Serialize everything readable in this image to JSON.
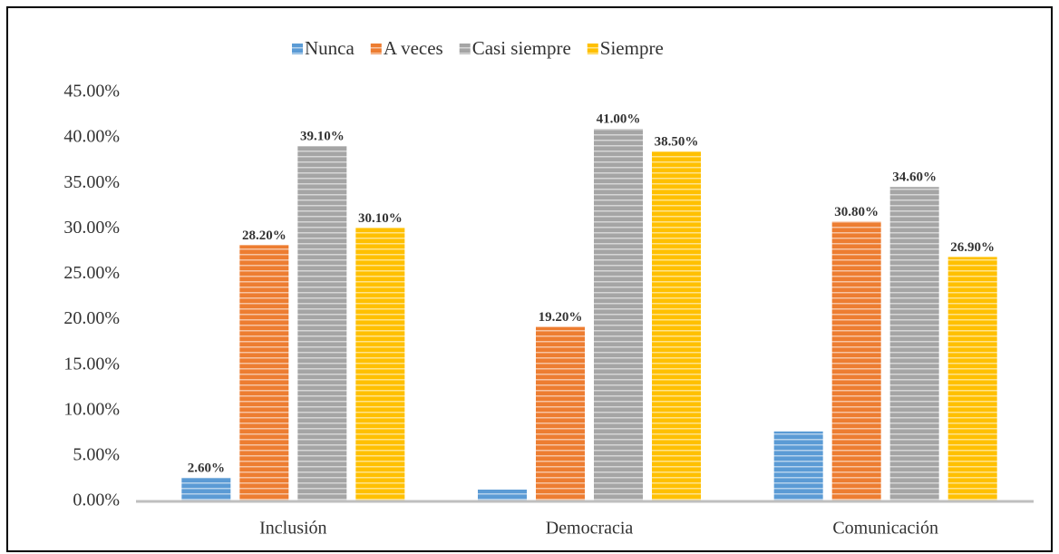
{
  "chart_data": {
    "type": "bar",
    "categories": [
      "Inclusión",
      "Democracia",
      "Comunicación"
    ],
    "series": [
      {
        "name": "Nunca",
        "color": "#5b9bd5",
        "values": [
          2.6,
          1.3,
          7.7
        ],
        "value_labels": [
          "2.60%",
          null,
          null
        ]
      },
      {
        "name": "A veces",
        "color": "#ed7d31",
        "values": [
          28.2,
          19.2,
          30.8
        ],
        "value_labels": [
          "28.20%",
          "19.20%",
          "30.80%"
        ]
      },
      {
        "name": "Casi siempre",
        "color": "#a5a5a5",
        "values": [
          39.1,
          41.0,
          34.6
        ],
        "value_labels": [
          "39.10%",
          "41.00%",
          "34.60%"
        ]
      },
      {
        "name": "Siempre",
        "color": "#ffc000",
        "values": [
          30.1,
          38.5,
          26.9
        ],
        "value_labels": [
          "30.10%",
          "38.50%",
          "26.90%"
        ]
      }
    ],
    "ylim": [
      0,
      45
    ],
    "yticks": [
      {
        "value": 0,
        "label": "0.00%"
      },
      {
        "value": 5,
        "label": "5.00%"
      },
      {
        "value": 10,
        "label": "10.00%"
      },
      {
        "value": 15,
        "label": "15.00%"
      },
      {
        "value": 20,
        "label": "20.00%"
      },
      {
        "value": 25,
        "label": "25.00%"
      },
      {
        "value": 30,
        "label": "30.00%"
      },
      {
        "value": 35,
        "label": "35.00%"
      },
      {
        "value": 40,
        "label": "40.00%"
      },
      {
        "value": 45,
        "label": "45.00%"
      }
    ],
    "legend": "top",
    "grid": false
  }
}
